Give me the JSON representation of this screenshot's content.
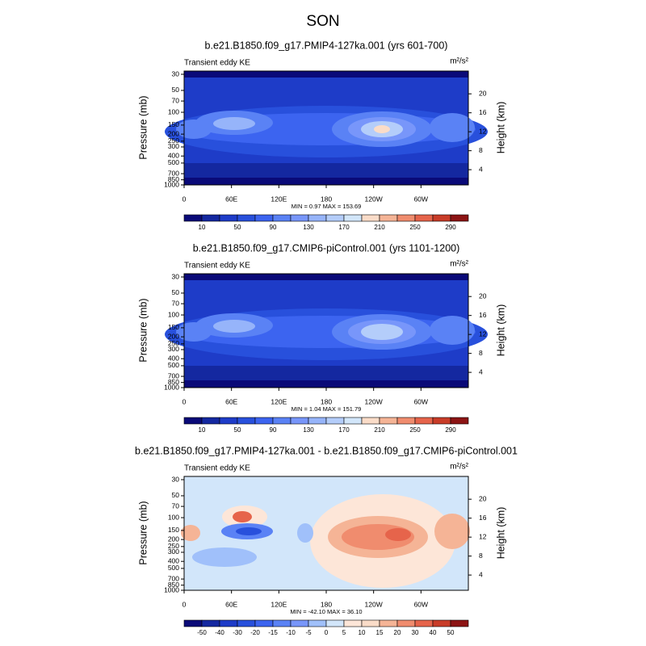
{
  "header": {
    "title": "SON"
  },
  "panels": [
    {
      "title": "b.e21.B1850.f09_g17.PMIP4-127ka.001 (yrs 601-700)",
      "left_label": "Transient eddy KE",
      "unit": "m²/s²",
      "y_label": "Pressure (mb)",
      "y2_label": "Height (km)",
      "pressure_ticks": [
        30,
        50,
        70,
        100,
        150,
        200,
        250,
        300,
        400,
        500,
        700,
        850,
        1000
      ],
      "height_ticks": [
        4,
        8,
        12,
        16,
        20
      ],
      "x_ticks": [
        "0",
        "60E",
        "120E",
        "180",
        "120W",
        "60W"
      ],
      "stats": "MIN =   0.97  MAX = 153.69",
      "colorbar": {
        "labels": [
          10,
          50,
          90,
          130,
          170,
          210,
          250,
          290
        ],
        "colors": [
          "#0a0a78",
          "#1428a0",
          "#1e3cc8",
          "#2850dc",
          "#3c64f0",
          "#5a82f5",
          "#7896fa",
          "#96b4fa",
          "#b4cdfa",
          "#d2e6fa",
          "#fadcc8",
          "#f5b496",
          "#f08c6e",
          "#e6644b",
          "#c83c28",
          "#8c1414"
        ]
      }
    },
    {
      "title": "b.e21.B1850.f09_g17.CMIP6-piControl.001 (yrs 1101-1200)",
      "left_label": "Transient eddy KE",
      "unit": "m²/s²",
      "y_label": "Pressure (mb)",
      "y2_label": "Height (km)",
      "pressure_ticks": [
        30,
        50,
        70,
        100,
        150,
        200,
        250,
        300,
        400,
        500,
        700,
        850,
        1000
      ],
      "height_ticks": [
        4,
        8,
        12,
        16,
        20
      ],
      "x_ticks": [
        "0",
        "60E",
        "120E",
        "180",
        "120W",
        "60W"
      ],
      "stats": "MIN =   1.04  MAX = 151.79",
      "colorbar": {
        "labels": [
          10,
          50,
          90,
          130,
          170,
          210,
          250,
          290
        ],
        "colors": [
          "#0a0a78",
          "#1428a0",
          "#1e3cc8",
          "#2850dc",
          "#3c64f0",
          "#5a82f5",
          "#7896fa",
          "#96b4fa",
          "#b4cdfa",
          "#d2e6fa",
          "#fadcc8",
          "#f5b496",
          "#f08c6e",
          "#e6644b",
          "#c83c28",
          "#8c1414"
        ]
      }
    },
    {
      "title": "b.e21.B1850.f09_g17.PMIP4-127ka.001 - b.e21.B1850.f09_g17.CMIP6-piControl.001",
      "left_label": "Transient eddy KE",
      "unit": "m²/s²",
      "y_label": "Pressure (mb)",
      "y2_label": "Height (km)",
      "pressure_ticks": [
        30,
        50,
        70,
        100,
        150,
        200,
        250,
        300,
        400,
        500,
        700,
        850,
        1000
      ],
      "height_ticks": [
        4,
        8,
        12,
        16,
        20
      ],
      "x_ticks": [
        "0",
        "60E",
        "120E",
        "180",
        "120W",
        "60W"
      ],
      "stats": "MIN = -42.10  MAX =  36.10",
      "colorbar": {
        "labels": [
          -50,
          -40,
          -30,
          -20,
          -15,
          -10,
          -5,
          0,
          5,
          10,
          15,
          20,
          30,
          40,
          50
        ],
        "colors": [
          "#0a0a78",
          "#1428a0",
          "#1e3cc8",
          "#2850dc",
          "#3c64f0",
          "#5a82f5",
          "#7896fa",
          "#a0c0fa",
          "#d2e6fa",
          "#fde6d8",
          "#fadcc8",
          "#f5b496",
          "#f08c6e",
          "#e6644b",
          "#c83c28",
          "#8c1414"
        ]
      }
    }
  ]
}
